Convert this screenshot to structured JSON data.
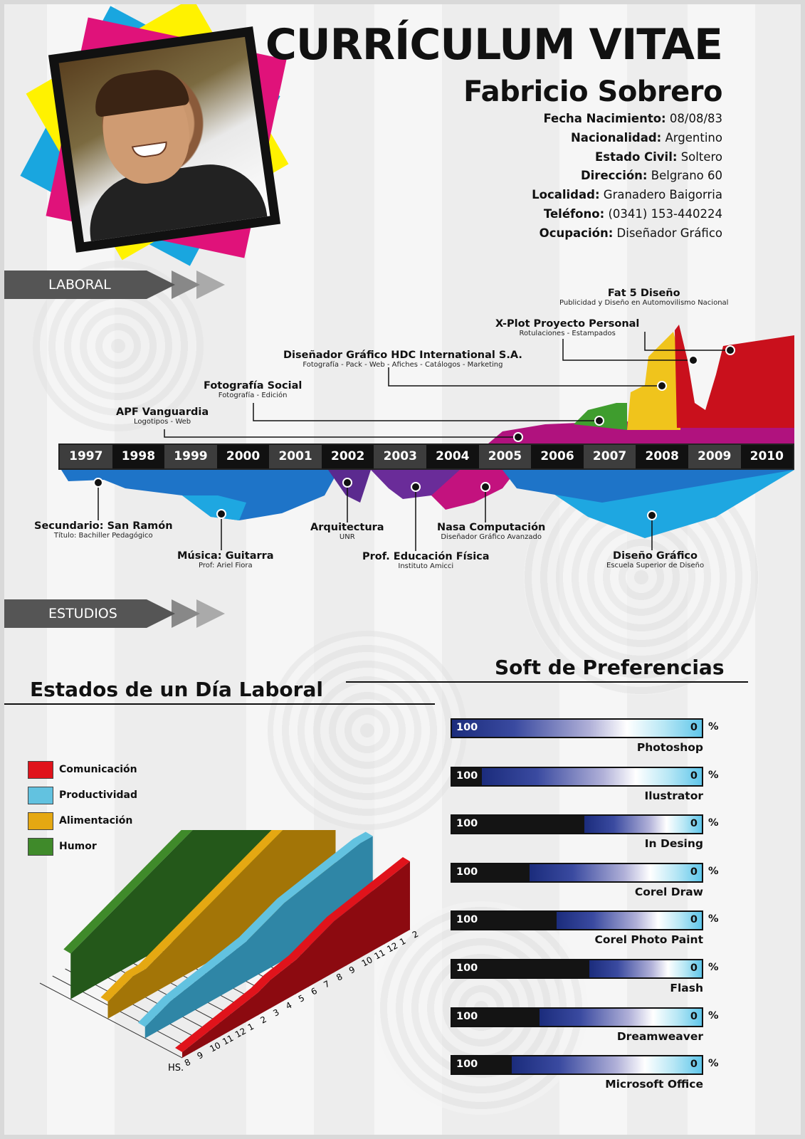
{
  "header": {
    "title": "CURRÍCULUM VITAE",
    "name": "Fabricio Sobrero",
    "info": [
      {
        "label": "Fecha Nacimiento:",
        "value": "08/08/83"
      },
      {
        "label": "Nacionalidad:",
        "value": "Argentino"
      },
      {
        "label": "Estado Civil:",
        "value": "Soltero"
      },
      {
        "label": "Dirección:",
        "value": "Belgrano 60"
      },
      {
        "label": "Localidad:",
        "value": "Granadero Baigorria"
      },
      {
        "label": "Teléfono:",
        "value": "(0341) 153-440224"
      },
      {
        "label": "Ocupación:",
        "value": "Diseñador Gráfico"
      }
    ]
  },
  "sections": {
    "laboral": "LABORAL",
    "estudios": "ESTUDIOS"
  },
  "timeline": {
    "years": [
      "1997",
      "1998",
      "1999",
      "2000",
      "2001",
      "2002",
      "2003",
      "2004",
      "2005",
      "2006",
      "2007",
      "2008",
      "2009",
      "2010"
    ],
    "laboral": [
      {
        "title": "Fat 5 Diseño",
        "sub": "Publicidad y Diseño en Automovilismo Nacional"
      },
      {
        "title": "X-Plot Proyecto Personal",
        "sub": "Rotulaciones - Estampados"
      },
      {
        "title": "Diseñador Gráfico HDC International S.A.",
        "sub": "Fotografía - Pack - Web - Afiches - Catálogos - Marketing"
      },
      {
        "title": "Fotografía Social",
        "sub": "Fotografía - Edición"
      },
      {
        "title": "APF Vanguardia",
        "sub": "Logotipos - Web"
      }
    ],
    "estudios": [
      {
        "title": "Secundario: San Ramón",
        "sub": "Título: Bachiller Pedagógico"
      },
      {
        "title": "Música: Guitarra",
        "sub": "Prof: Ariel Fiora"
      },
      {
        "title": "Arquitectura",
        "sub": "UNR"
      },
      {
        "title": "Prof. Educación Física",
        "sub": "Instituto Amicci"
      },
      {
        "title": "Nasa Computación",
        "sub": "Diseñador Gráfico Avanzado"
      },
      {
        "title": "Diseño Gráfico",
        "sub": "Escuela Superior de Diseño"
      }
    ]
  },
  "dia_laboral": {
    "title": "Estados de un Día Laboral",
    "legend": [
      {
        "label": "Comunicación",
        "color": "#e0131b"
      },
      {
        "label": "Productividad",
        "color": "#62c2e0"
      },
      {
        "label": "Alimentación",
        "color": "#e5a812"
      },
      {
        "label": "Humor",
        "color": "#3f8a2a"
      }
    ],
    "hours_label": "HS.",
    "hours": [
      "8",
      "9",
      "10",
      "11",
      "12",
      "1",
      "2",
      "3",
      "4",
      "5",
      "6",
      "7",
      "8",
      "9",
      "10",
      "11",
      "12",
      "1",
      "2"
    ]
  },
  "chart_data": {
    "type": "area",
    "title": "Estados de un Día Laboral",
    "xlabel": "HS.",
    "categories": [
      "8",
      "9",
      "10",
      "11",
      "12",
      "1",
      "2",
      "3",
      "4",
      "5",
      "6",
      "7",
      "8",
      "9",
      "10",
      "11",
      "12",
      "1",
      "2"
    ],
    "series": [
      {
        "name": "Comunicación",
        "values": [
          1,
          1.5,
          2,
          2.5,
          3,
          3.5,
          4,
          5,
          5.5,
          6,
          7,
          8,
          9,
          9.5,
          10,
          10.5,
          11,
          11.5,
          12
        ]
      },
      {
        "name": "Productividad",
        "values": [
          2,
          3,
          4,
          4.5,
          5,
          5.5,
          6,
          6.5,
          7,
          8,
          9,
          10,
          10.5,
          11,
          11.5,
          12,
          12.5,
          13,
          13
        ]
      },
      {
        "name": "Alimentación",
        "values": [
          3,
          4,
          5,
          5,
          6,
          7,
          8,
          9,
          10,
          11,
          12,
          13,
          14,
          15,
          16,
          17,
          17,
          17,
          17
        ]
      },
      {
        "name": "Humor",
        "values": [
          8,
          9,
          10,
          11,
          12,
          13,
          14,
          15,
          16,
          17,
          18,
          18,
          18,
          18,
          18,
          18,
          18,
          18,
          18
        ]
      }
    ]
  },
  "software": {
    "title": "Soft de Preferencias",
    "max_label": "100",
    "min_label": "0",
    "pct": "%",
    "items": [
      {
        "name": "Photoshop",
        "level": 100
      },
      {
        "name": "Ilustrator",
        "level": 88
      },
      {
        "name": "In Desing",
        "level": 47
      },
      {
        "name": "Corel Draw",
        "level": 69
      },
      {
        "name": "Corel Photo Paint",
        "level": 58
      },
      {
        "name": "Flash",
        "level": 45
      },
      {
        "name": "Dreamweaver",
        "level": 65
      },
      {
        "name": "Microsoft Office",
        "level": 76
      }
    ]
  }
}
